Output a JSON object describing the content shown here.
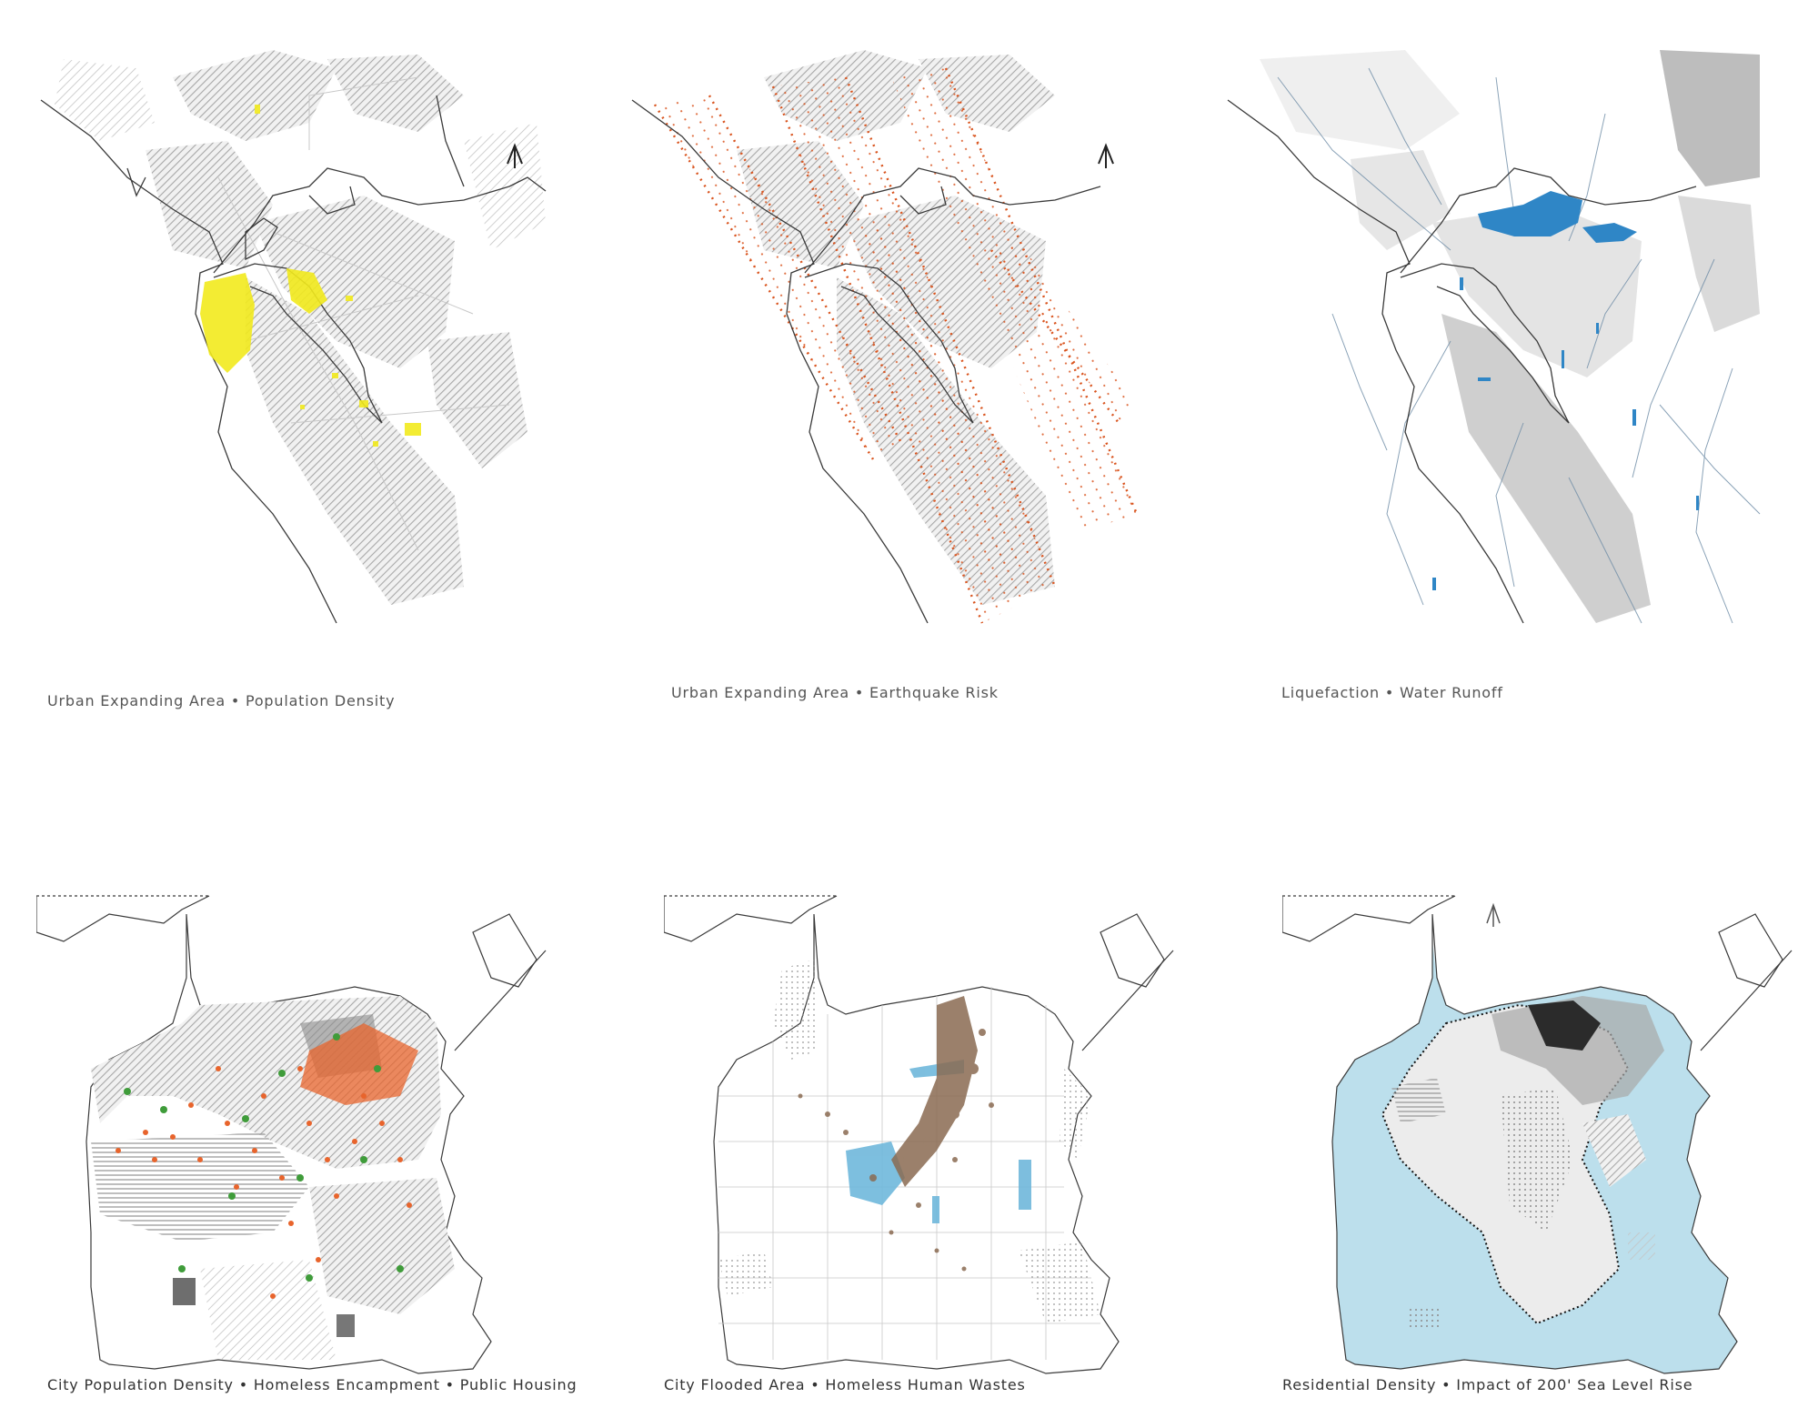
{
  "panels": [
    {
      "caption": "Urban Expanding Area • Population Density",
      "overlay_color": "#f2ea1d"
    },
    {
      "caption": "Urban Expanding Area • Earthquake Risk",
      "overlay_color": "#d9541e"
    },
    {
      "caption": "Liquefaction • Water Runoff",
      "overlay_color": "#2f86c6"
    },
    {
      "caption": "City Population Density • Homeless Encampment • Public Housing",
      "overlay_color": "#e8642c",
      "secondary_color": "#3f9c3a"
    },
    {
      "caption": "City Flooded Area • Homeless Human Wastes",
      "overlay_color": "#8a6b52",
      "secondary_color": "#6fb8db"
    },
    {
      "caption": "Residential Density • Impact of 200' Sea Level Rise",
      "overlay_color": "#bcdfec",
      "secondary_color": "#2b2b2b"
    }
  ],
  "colors": {
    "hatch": "#b4b4b4",
    "coast": "#3a3a3a",
    "caption": "#555555"
  },
  "icons": [
    "north-arrow-icon"
  ]
}
